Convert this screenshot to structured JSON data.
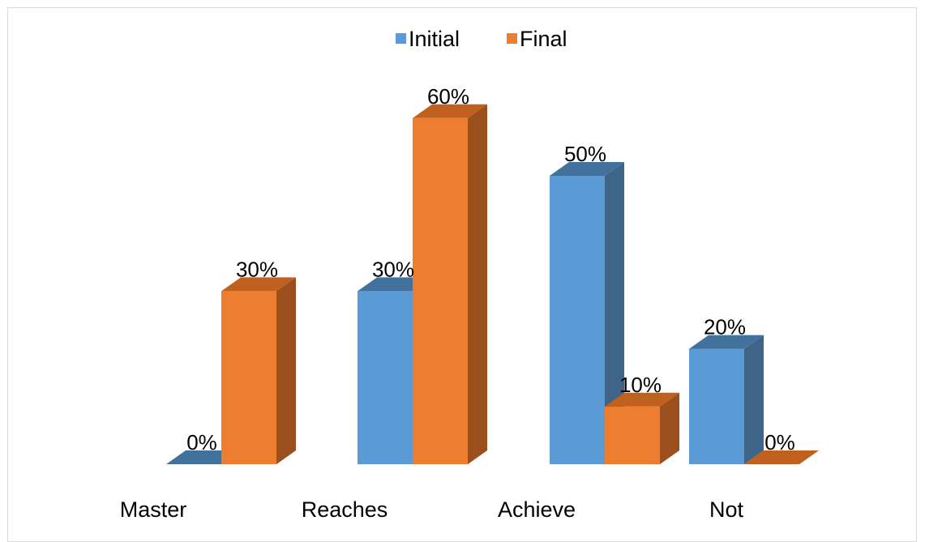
{
  "chart_data": {
    "type": "bar",
    "style": "3d-clustered-column",
    "categories": [
      "Master",
      "Reaches",
      "Achieve",
      "Not"
    ],
    "series": [
      {
        "name": "Initial",
        "values": [
          0,
          30,
          50,
          20
        ],
        "labels": [
          "0%",
          "30%",
          "50%",
          "20%"
        ],
        "color": "#5b9bd5",
        "side_color": "#3e6487",
        "top_color": "#41719c"
      },
      {
        "name": "Final",
        "values": [
          30,
          60,
          10,
          0
        ],
        "labels": [
          "30%",
          "60%",
          "10%",
          "0%"
        ],
        "color": "#ed7d31",
        "side_color": "#9b4f1d",
        "top_color": "#c0601e"
      }
    ],
    "unit": "%",
    "ylim": [
      0,
      60
    ],
    "grid": false,
    "legend": "top-center",
    "title": "",
    "xlabel": "",
    "ylabel": ""
  }
}
